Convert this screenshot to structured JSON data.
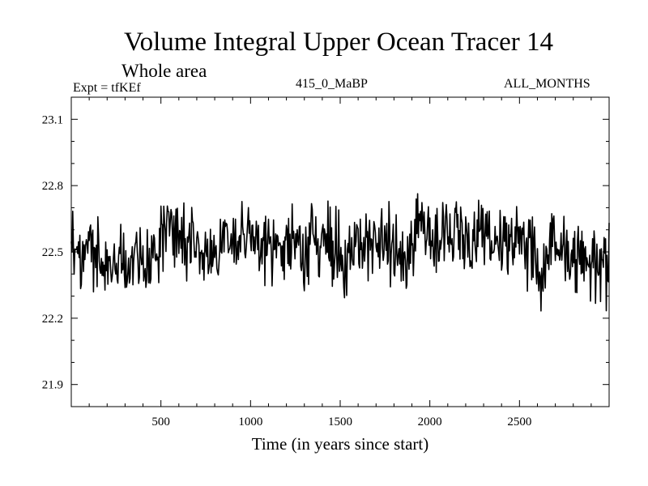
{
  "chart_data": {
    "type": "line",
    "title": "Volume Integral Upper Ocean Tracer 14",
    "subtitle": "Whole area",
    "left_note": "Expt = tfKEf",
    "center_note": "415_0_MaBP",
    "right_note": "ALL_MONTHS",
    "xlabel": "Time (in years since start)",
    "ylabel": "",
    "xlim": [
      0,
      3000
    ],
    "ylim": [
      21.8,
      23.2
    ],
    "x_ticks": [
      500,
      1000,
      1500,
      2000,
      2500
    ],
    "y_ticks": [
      21.9,
      22.2,
      22.5,
      22.8,
      23.1
    ],
    "x_tick_labels": [
      "500",
      "1000",
      "1500",
      "2000",
      "2500"
    ],
    "y_tick_labels": [
      "21.9",
      "22.2",
      "22.5",
      "22.8",
      "23.1"
    ],
    "line_color": "#000000",
    "series": [
      {
        "x": [
          0,
          50,
          100,
          150,
          200,
          250,
          300,
          350,
          400,
          450,
          500,
          550,
          600,
          650,
          700,
          750,
          800,
          850,
          900,
          950,
          1000,
          1050,
          1100,
          1150,
          1200,
          1250,
          1300,
          1350,
          1400,
          1450,
          1500,
          1550,
          1600,
          1650,
          1700,
          1750,
          1800,
          1850,
          1900,
          1950,
          2000,
          2050,
          2100,
          2150,
          2200,
          2250,
          2300,
          2350,
          2400,
          2450,
          2500,
          2550,
          2600,
          2650,
          2700,
          2750,
          2800,
          2850,
          2900,
          2950,
          3000
        ],
        "values": [
          22.55,
          22.42,
          22.6,
          22.48,
          22.4,
          22.45,
          22.44,
          22.5,
          22.47,
          22.5,
          22.55,
          22.58,
          22.56,
          22.55,
          22.56,
          22.5,
          22.52,
          22.55,
          22.55,
          22.58,
          22.55,
          22.52,
          22.55,
          22.5,
          22.52,
          22.55,
          22.5,
          22.58,
          22.6,
          22.52,
          22.5,
          22.48,
          22.55,
          22.5,
          22.56,
          22.55,
          22.5,
          22.52,
          22.55,
          22.58,
          22.55,
          22.6,
          22.58,
          22.55,
          22.57,
          22.52,
          22.55,
          22.5,
          22.56,
          22.58,
          22.55,
          22.52,
          22.4,
          22.45,
          22.5,
          22.52,
          22.5,
          22.48,
          22.45,
          22.46,
          22.42
        ],
        "spread": [
          0.26,
          0.24,
          0.3,
          0.26,
          0.24,
          0.24,
          0.24,
          0.25,
          0.26,
          0.24,
          0.24,
          0.24,
          0.23,
          0.24,
          0.24,
          0.24,
          0.24,
          0.23,
          0.24,
          0.26,
          0.24,
          0.24,
          0.24,
          0.26,
          0.25,
          0.25,
          0.26,
          0.34,
          0.26,
          0.26,
          0.3,
          0.26,
          0.25,
          0.24,
          0.24,
          0.24,
          0.26,
          0.25,
          0.26,
          0.24,
          0.26,
          0.26,
          0.28,
          0.26,
          0.24,
          0.24,
          0.26,
          0.24,
          0.25,
          0.24,
          0.24,
          0.26,
          0.34,
          0.3,
          0.26,
          0.24,
          0.25,
          0.24,
          0.26,
          0.28,
          0.26
        ]
      }
    ]
  }
}
